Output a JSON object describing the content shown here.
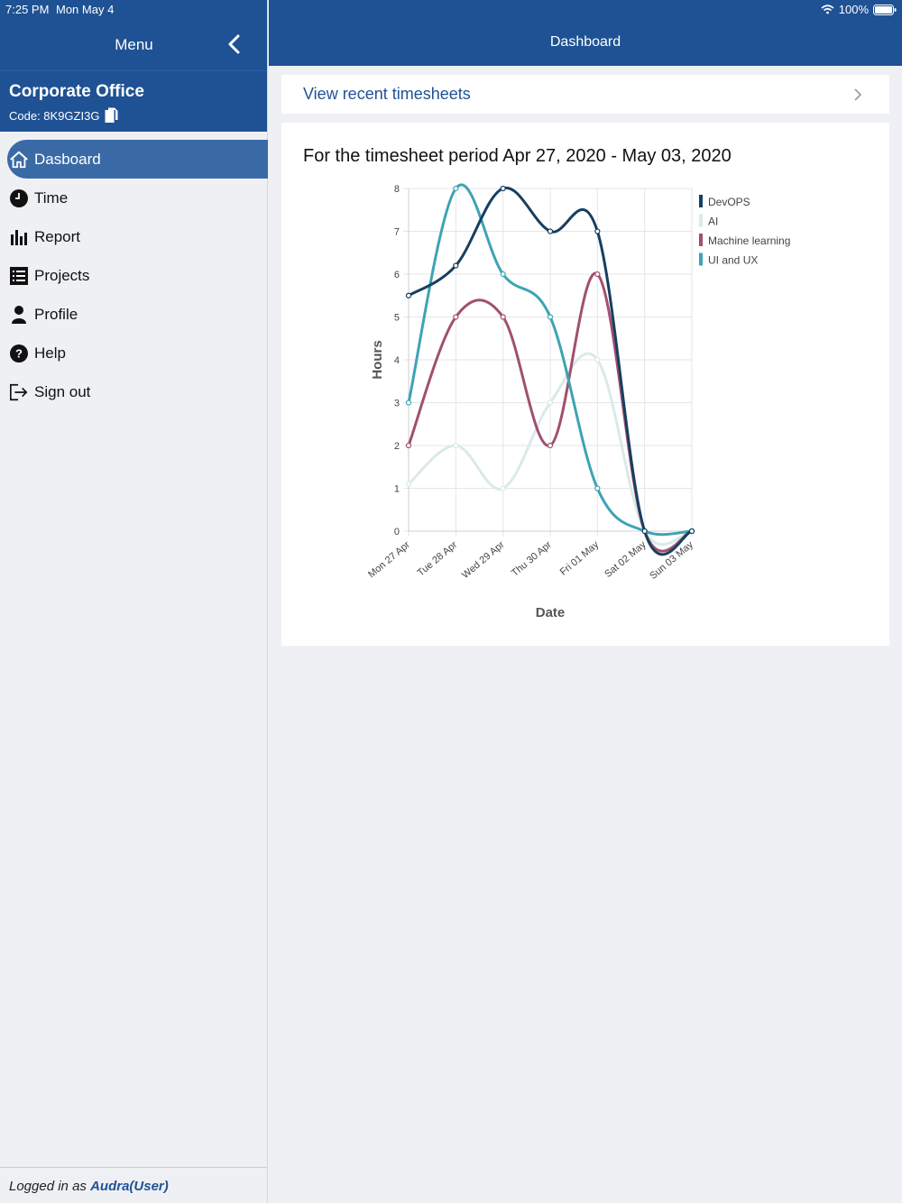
{
  "status_bar": {
    "time": "7:25 PM",
    "date": "Mon May 4",
    "battery": "100%"
  },
  "sidebar": {
    "title": "Menu",
    "org_name": "Corporate Office",
    "org_code": "Code: 8K9GZI3G",
    "items": [
      {
        "label": "Dasboard",
        "icon": "home-icon"
      },
      {
        "label": "Time",
        "icon": "clock-icon"
      },
      {
        "label": "Report",
        "icon": "bar-chart-icon"
      },
      {
        "label": "Projects",
        "icon": "list-icon"
      },
      {
        "label": "Profile",
        "icon": "person-icon"
      },
      {
        "label": "Help",
        "icon": "help-icon"
      },
      {
        "label": "Sign out",
        "icon": "sign-out-icon"
      }
    ],
    "footer_prefix": "Logged in as ",
    "footer_user": "Audra(User)"
  },
  "main": {
    "title": "Dashboard",
    "recent_link": "View recent timesheets",
    "chart_heading": "For the timesheet period Apr 27, 2020 - May 03, 2020"
  },
  "colors": {
    "header": "#1f5294",
    "devops": "#173f5f",
    "ai": "#dbe9ea",
    "machine_learning": "#a05070",
    "ui_ux": "#3ea3b5"
  },
  "chart_data": {
    "type": "line",
    "categories": [
      "Mon 27 Apr",
      "Tue 28 Apr",
      "Wed 29 Apr",
      "Thu 30 Apr",
      "Fri 01 May",
      "Sat 02 May",
      "Sun 03 May"
    ],
    "xlabel": "Date",
    "ylabel": "Hours",
    "ylim": [
      0,
      8
    ],
    "yticks": [
      0,
      1,
      2,
      3,
      4,
      5,
      6,
      7,
      8
    ],
    "grid": true,
    "legend_position": "right",
    "series": [
      {
        "name": "DevOPS",
        "color": "#173f5f",
        "values": [
          5.5,
          6.2,
          8,
          7,
          7,
          0,
          0
        ]
      },
      {
        "name": "AI",
        "color": "#dbe9ea",
        "values": [
          1.1,
          2,
          1,
          3,
          4,
          0,
          0
        ]
      },
      {
        "name": "Machine learning",
        "color": "#a05070",
        "values": [
          2,
          5,
          5,
          2,
          6,
          0,
          0
        ]
      },
      {
        "name": "UI and UX",
        "color": "#3ea3b5",
        "values": [
          3,
          8,
          6,
          5,
          1,
          0,
          0
        ]
      }
    ]
  }
}
